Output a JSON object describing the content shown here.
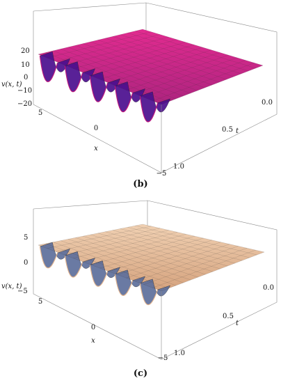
{
  "chart_data": [
    {
      "type": "surface",
      "caption": "(b)",
      "zlabel": "v(x, t)",
      "xlabel": "x",
      "tlabel": "t",
      "x_ticks": [
        "5",
        "0",
        "−5"
      ],
      "t_ticks": [
        "0.0",
        "0.5",
        "1.0"
      ],
      "z_ticks": [
        "20",
        "10",
        "0",
        "−10",
        "−20"
      ],
      "x_range": [
        -5,
        5
      ],
      "t_range": [
        0.0,
        1.0
      ],
      "z_range": [
        -20,
        20
      ],
      "surface_color": "#c0177d",
      "shadow_color": "#4b0f8f",
      "wave_amplitude": 20,
      "plateau_value": 10,
      "wave_count": 5
    },
    {
      "type": "surface",
      "caption": "(c)",
      "zlabel": "v(x, t)",
      "xlabel": "x",
      "tlabel": "t",
      "x_ticks": [
        "5",
        "0",
        "−5"
      ],
      "t_ticks": [
        "0.0",
        "0.5",
        "1.0"
      ],
      "z_ticks": [
        "5",
        "0",
        "−5"
      ],
      "x_range": [
        -5,
        5
      ],
      "t_range": [
        0.0,
        1.0
      ],
      "z_range": [
        -5,
        5
      ],
      "surface_color": "#e2b48e",
      "shadow_color": "#5e6f9c",
      "wave_amplitude": 5,
      "plateau_value": 2.5,
      "wave_count": 5
    }
  ]
}
